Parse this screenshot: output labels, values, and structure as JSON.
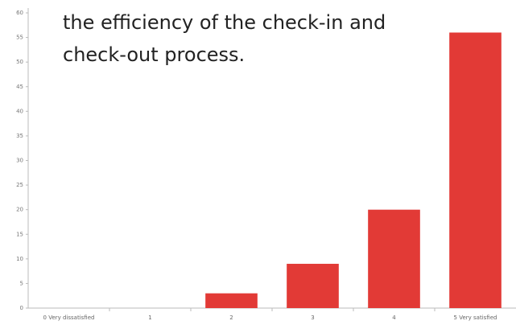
{
  "chart_data": {
    "type": "bar",
    "title": "the efficiency of the check-in and check-out process.",
    "categories": [
      "0 Very dissatisfied",
      "1",
      "2",
      "3",
      "4",
      "5 Very satisfied"
    ],
    "values": [
      0,
      0,
      3,
      9,
      20,
      56
    ],
    "color": "#e23a36",
    "ylim": [
      0,
      60
    ],
    "yticks": [
      0,
      5,
      10,
      15,
      20,
      25,
      30,
      35,
      40,
      45,
      50,
      55,
      60
    ],
    "grid": false
  }
}
